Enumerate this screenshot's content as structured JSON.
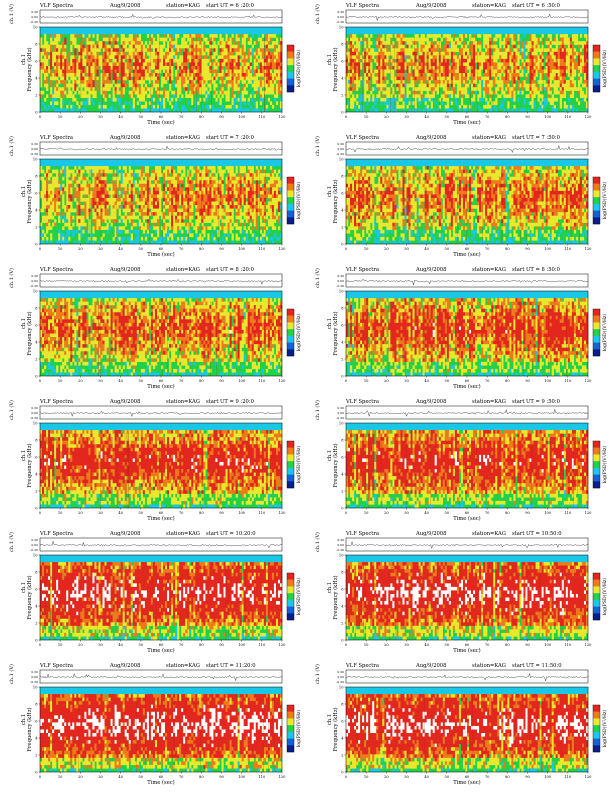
{
  "page": {
    "rows": 6,
    "cols": 2
  },
  "labels": {
    "title": "VLF Spectra",
    "date": "Aug/9/2008",
    "station": "station=KAG",
    "start_prefix": "start UT =",
    "xlabel": "Time  (sec)",
    "ylabel_wave": "ch.1 (V)",
    "ylabel_spec_channel": "ch.1",
    "ylabel_spec": "Frequency  (kHz)",
    "colorbar_label": "log(PSD)(V²/Hz)"
  },
  "colorscale": [
    "#0b1f8a",
    "#1561d6",
    "#19c7e6",
    "#23d04a",
    "#e8e82c",
    "#ef7a1c",
    "#e3261e",
    "#ffffff"
  ],
  "chart_data": [
    {
      "type": "heatmap",
      "start_ut": "6 :20:0",
      "activity": 0.3,
      "seed": 11
    },
    {
      "type": "heatmap",
      "start_ut": "6 :50:0",
      "activity": 0.33,
      "seed": 23
    },
    {
      "type": "heatmap",
      "start_ut": "7 :20:0",
      "activity": 0.32,
      "seed": 37
    },
    {
      "type": "heatmap",
      "start_ut": "7 :50:0",
      "activity": 0.36,
      "seed": 41
    },
    {
      "type": "heatmap",
      "start_ut": "8 :20:0",
      "activity": 0.45,
      "seed": 53
    },
    {
      "type": "heatmap",
      "start_ut": "8 :50:0",
      "activity": 0.5,
      "seed": 67
    },
    {
      "type": "heatmap",
      "start_ut": "9 :20:0",
      "activity": 0.58,
      "seed": 71
    },
    {
      "type": "heatmap",
      "start_ut": "9 :50:0",
      "activity": 0.6,
      "seed": 83
    },
    {
      "type": "heatmap",
      "start_ut": "10:20:0",
      "activity": 0.75,
      "seed": 97
    },
    {
      "type": "heatmap",
      "start_ut": "10:50:0",
      "activity": 0.78,
      "seed": 101
    },
    {
      "type": "heatmap",
      "start_ut": "11:20:0",
      "activity": 0.8,
      "seed": 113
    },
    {
      "type": "heatmap",
      "start_ut": "11:50:0",
      "activity": 0.78,
      "seed": 127
    }
  ],
  "axes": {
    "x_ticks": [
      "0",
      "10",
      "20",
      "30",
      "40",
      "50",
      "60",
      "70",
      "80",
      "90",
      "100",
      "110",
      "120"
    ],
    "y_ticks_spec": [
      "0",
      "2",
      "4",
      "6",
      "8",
      "10"
    ],
    "y_ticks_wave": [
      "0.30",
      "0.00",
      "-0.30"
    ],
    "xlim": [
      0,
      120
    ],
    "ylim_spec": [
      0,
      10
    ],
    "ylim_wave": [
      -0.3,
      0.3
    ]
  }
}
